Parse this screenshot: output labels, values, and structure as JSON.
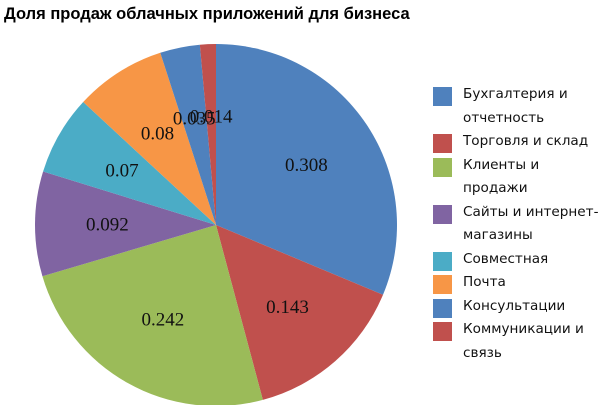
{
  "chart_data": {
    "type": "pie",
    "title": "Доля продаж облачных приложений для бизнеса",
    "categories": [
      "Бухгалтерия и отчетность",
      "Торговля и склад",
      "Клиенты и продажи",
      "Сайты и интернет-магазины",
      "Совместная",
      "Почта",
      "Консультации",
      "Коммуникации и связь"
    ],
    "values": [
      0.308,
      0.143,
      0.242,
      0.092,
      0.07,
      0.08,
      0.035,
      0.014
    ],
    "value_labels": [
      "0.308",
      "0.143",
      "0.242",
      "0.092",
      "0.07",
      "0.08",
      "0.035",
      "0.014"
    ],
    "colors": [
      "#4f81bd",
      "#c0504d",
      "#9bbb59",
      "#8064a2",
      "#4bacc6",
      "#f79646",
      "#4f81bd",
      "#c0504d"
    ],
    "start_angle": "12 o'clock",
    "direction": "clockwise",
    "legend_position": "right"
  },
  "title": "Доля продаж облачных приложений для бизнеса",
  "legend": [
    {
      "label": "Бухгалтерия и отчетность",
      "color": "#4f81bd"
    },
    {
      "label": "Торговля и склад",
      "color": "#c0504d"
    },
    {
      "label": "Клиенты и продажи",
      "color": "#9bbb59"
    },
    {
      "label": "Сайты и интернет-магазины",
      "color": "#8064a2"
    },
    {
      "label": "Совместная",
      "color": "#4bacc6"
    },
    {
      "label": "Почта",
      "color": "#f79646"
    },
    {
      "label": "Консультации",
      "color": "#4f81bd"
    },
    {
      "label": "Коммуникации и связь",
      "color": "#c0504d"
    }
  ]
}
